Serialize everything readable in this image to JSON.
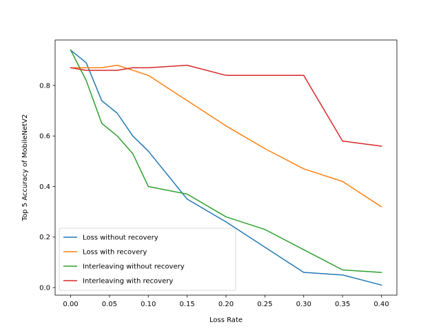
{
  "chart_data": {
    "type": "line",
    "title": "",
    "xlabel": "Loss Rate",
    "ylabel": "Top 5 Accuracy of MobileNetV2",
    "xlim": [
      -0.02,
      0.42
    ],
    "ylim": [
      -0.03,
      0.98
    ],
    "xticks": [
      "0.00",
      "0.05",
      "0.10",
      "0.15",
      "0.20",
      "0.25",
      "0.30",
      "0.35",
      "0.40"
    ],
    "xtick_values": [
      0,
      0.05,
      0.1,
      0.15,
      0.2,
      0.25,
      0.3,
      0.35,
      0.4
    ],
    "yticks": [
      "0.0",
      "0.2",
      "0.4",
      "0.6",
      "0.8"
    ],
    "ytick_values": [
      0,
      0.2,
      0.4,
      0.6,
      0.8
    ],
    "grid": false,
    "legend_position": "lower-left",
    "series": [
      {
        "name": "Loss without recovery",
        "color": "#1f77b4",
        "x": [
          0,
          0.02,
          0.04,
          0.06,
          0.08,
          0.1,
          0.15,
          0.2,
          0.3,
          0.35,
          0.4
        ],
        "y": [
          0.94,
          0.89,
          0.74,
          0.69,
          0.6,
          0.54,
          0.35,
          0.26,
          0.06,
          0.05,
          0.01
        ]
      },
      {
        "name": "Loss with recovery",
        "color": "#ff7f0e",
        "x": [
          0,
          0.02,
          0.04,
          0.06,
          0.08,
          0.1,
          0.15,
          0.2,
          0.25,
          0.3,
          0.35,
          0.4
        ],
        "y": [
          0.87,
          0.87,
          0.87,
          0.88,
          0.86,
          0.84,
          0.74,
          0.64,
          0.55,
          0.47,
          0.42,
          0.32
        ]
      },
      {
        "name": "Interleaving without recovery",
        "color": "#2ca02c",
        "x": [
          0,
          0.02,
          0.04,
          0.06,
          0.08,
          0.1,
          0.15,
          0.2,
          0.25,
          0.3,
          0.35,
          0.4
        ],
        "y": [
          0.94,
          0.82,
          0.65,
          0.6,
          0.53,
          0.4,
          0.37,
          0.28,
          0.23,
          0.15,
          0.07,
          0.06
        ]
      },
      {
        "name": "Interleaving with recovery",
        "color": "#d62728",
        "x": [
          0,
          0.02,
          0.04,
          0.06,
          0.08,
          0.1,
          0.15,
          0.2,
          0.25,
          0.3,
          0.35,
          0.4
        ],
        "y": [
          0.87,
          0.86,
          0.86,
          0.86,
          0.87,
          0.87,
          0.88,
          0.84,
          0.84,
          0.84,
          0.58,
          0.56
        ]
      }
    ]
  }
}
